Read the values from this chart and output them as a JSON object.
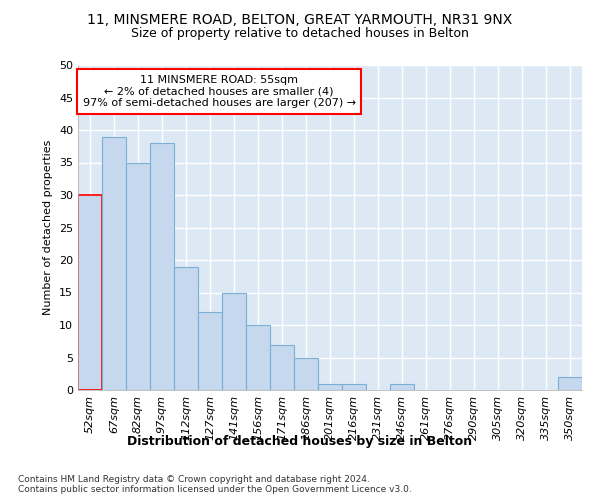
{
  "title1": "11, MINSMERE ROAD, BELTON, GREAT YARMOUTH, NR31 9NX",
  "title2": "Size of property relative to detached houses in Belton",
  "xlabel": "Distribution of detached houses by size in Belton",
  "ylabel": "Number of detached properties",
  "bar_labels": [
    "52sqm",
    "67sqm",
    "82sqm",
    "97sqm",
    "112sqm",
    "127sqm",
    "141sqm",
    "156sqm",
    "171sqm",
    "186sqm",
    "201sqm",
    "216sqm",
    "231sqm",
    "246sqm",
    "261sqm",
    "276sqm",
    "290sqm",
    "305sqm",
    "320sqm",
    "335sqm",
    "350sqm"
  ],
  "bar_values": [
    30,
    39,
    35,
    38,
    19,
    12,
    15,
    10,
    7,
    5,
    1,
    1,
    0,
    1,
    0,
    0,
    0,
    0,
    0,
    0,
    2
  ],
  "bar_color": "#c5d8ee",
  "bar_edge_color": "#7bafd4",
  "annotation_text": "11 MINSMERE ROAD: 55sqm\n← 2% of detached houses are smaller (4)\n97% of semi-detached houses are larger (207) →",
  "annotation_box_color": "white",
  "annotation_box_edge_color": "red",
  "highlight_bar_edge_color": "red",
  "ylim": [
    0,
    50
  ],
  "yticks": [
    0,
    5,
    10,
    15,
    20,
    25,
    30,
    35,
    40,
    45,
    50
  ],
  "footnote": "Contains HM Land Registry data © Crown copyright and database right 2024.\nContains public sector information licensed under the Open Government Licence v3.0.",
  "bg_color": "#ffffff",
  "plot_bg_color": "#dce9f5",
  "grid_color": "#ffffff",
  "title1_fontsize": 10,
  "title2_fontsize": 9,
  "xlabel_fontsize": 9,
  "ylabel_fontsize": 8,
  "tick_fontsize": 8,
  "annotation_fontsize": 8,
  "footnote_fontsize": 6.5
}
